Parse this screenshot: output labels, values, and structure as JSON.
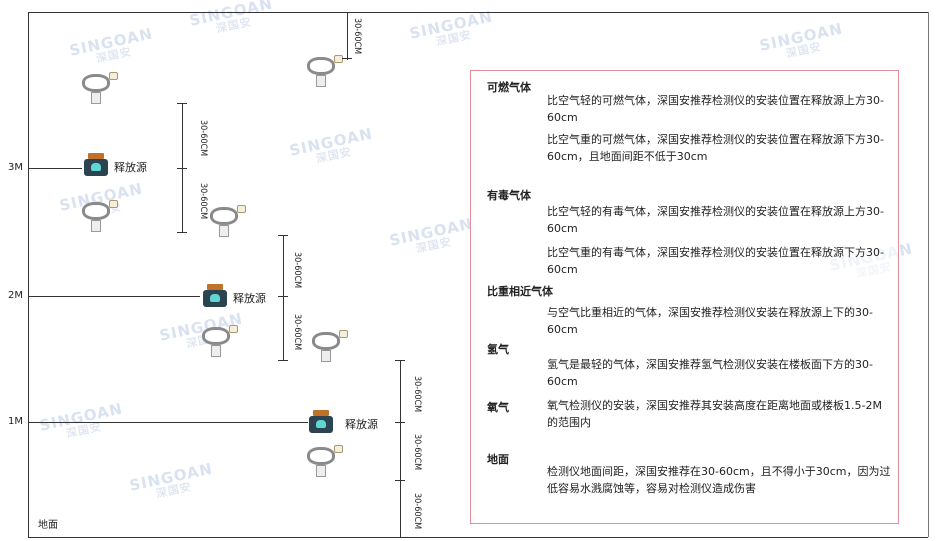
{
  "watermark": {
    "brand": "SINGOAN",
    "cn": "深国安"
  },
  "levels": [
    "3M",
    "2M",
    "1M"
  ],
  "ground_label": "地面",
  "source_label": "释放源",
  "dimension_label": "30-60CM",
  "panel": {
    "sections": [
      {
        "heading": "可燃气体",
        "paragraphs": [
          "比空气轻的可燃气体，深国安推荐检测仪的安装位置在释放源上方30-60cm",
          "比空气重的可燃气体，深国安推荐检测仪的安装位置在释放源下方30-60cm，且地面间距不低于30cm"
        ]
      },
      {
        "heading": "有毒气体",
        "paragraphs": [
          "比空气轻的有毒气体，深国安推荐检测仪的安装位置在释放源上方30-60cm",
          "比空气重的有毒气体，深国安推荐检测仪的安装位置在释放源下方30-60cm"
        ]
      },
      {
        "heading": "比重相近气体",
        "paragraphs": [
          "与空气比重相近的气体，深国安推荐检测仪安装在释放源上下的30-60cm"
        ]
      },
      {
        "heading": "氢气",
        "paragraphs": [
          "氢气是最轻的气体，深国安推荐氢气检测仪安装在楼板面下方的30-60cm"
        ]
      },
      {
        "heading": "氧气",
        "paragraphs": [
          "氧气检测仪的安装，深国安推荐其安装高度在距离地面或楼板1.5-2M的范围内"
        ]
      },
      {
        "heading": "地面",
        "paragraphs": [
          "检测仪地面间距，深国安推荐在30-60cm，且不得小于30cm，因为过低容易水溅腐蚀等，容易对检测仪造成伤害"
        ]
      }
    ]
  },
  "colors": {
    "panel_border": "#e48f96",
    "source_body": "#2c4350",
    "source_cap": "#c0712a"
  }
}
